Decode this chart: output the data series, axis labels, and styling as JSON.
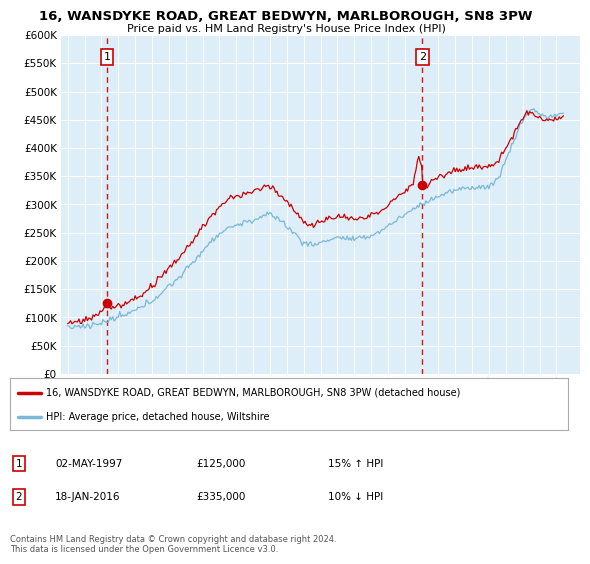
{
  "title": "16, WANSDYKE ROAD, GREAT BEDWYN, MARLBOROUGH, SN8 3PW",
  "subtitle": "Price paid vs. HM Land Registry's House Price Index (HPI)",
  "legend_line1": "16, WANSDYKE ROAD, GREAT BEDWYN, MARLBOROUGH, SN8 3PW (detached house)",
  "legend_line2": "HPI: Average price, detached house, Wiltshire",
  "footnote": "Contains HM Land Registry data © Crown copyright and database right 2024.\nThis data is licensed under the Open Government Licence v3.0.",
  "transaction1_date": "02-MAY-1997",
  "transaction1_price": "£125,000",
  "transaction1_hpi": "15% ↑ HPI",
  "transaction1_year": 1997.33,
  "transaction1_value": 125000,
  "transaction2_date": "18-JAN-2016",
  "transaction2_price": "£335,000",
  "transaction2_hpi": "10% ↓ HPI",
  "transaction2_year": 2016.05,
  "transaction2_value": 335000,
  "hpi_color": "#7ab8d9",
  "price_color": "#cc0000",
  "ylim_min": 0,
  "ylim_max": 600000,
  "bg_color": "#ddeef8"
}
